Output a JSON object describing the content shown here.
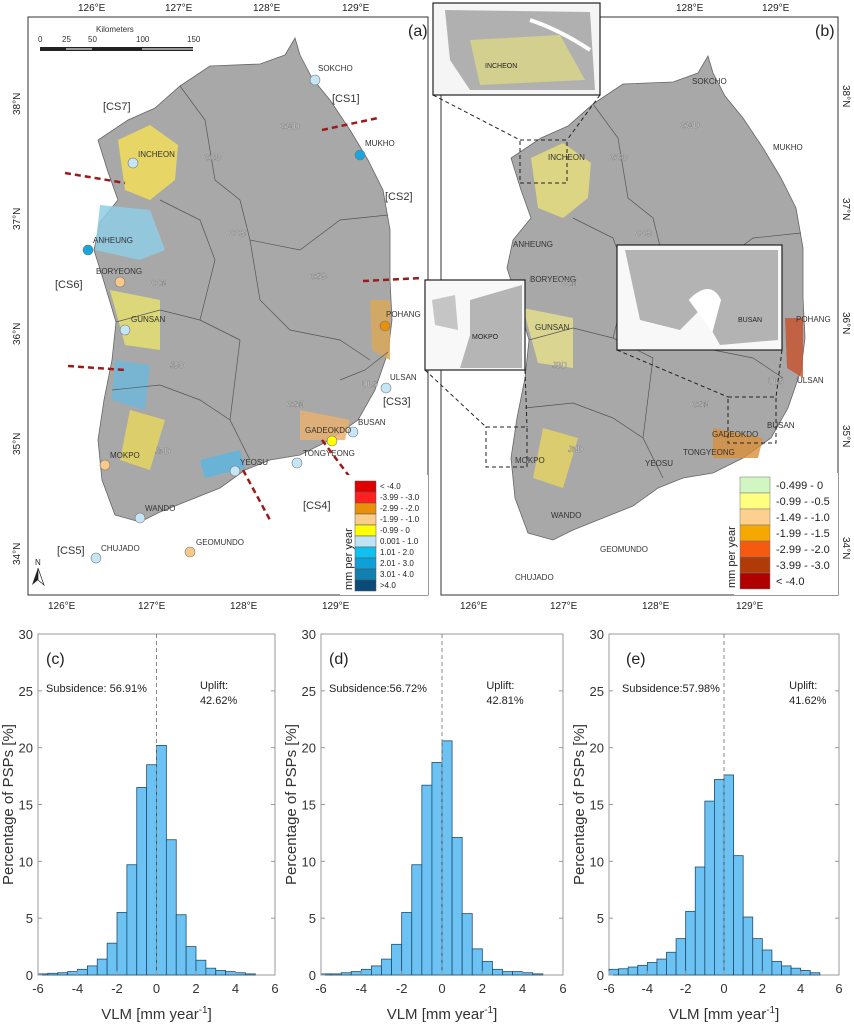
{
  "map_a": {
    "panel_label": "(a)",
    "scale_title": "Kilometers",
    "scale_ticks": [
      "0",
      "25",
      "50",
      "100",
      "150"
    ],
    "lon_ticks_top": [
      "126°E",
      "127°E",
      "128°E",
      "129°E"
    ],
    "lon_ticks_bottom": [
      "126°E",
      "127°E",
      "128°E",
      "129°E"
    ],
    "lat_ticks": [
      "38°N",
      "37°N",
      "36°N",
      "35°N",
      "34°N"
    ],
    "north": "N",
    "provinces": [
      "GWD",
      "GGD",
      "CCB",
      "GSB",
      "CCN",
      "JBD",
      "GSN",
      "JND",
      "ULS"
    ],
    "stations": [
      "SOKCHO",
      "MUKHO",
      "INCHEON",
      "ANHEUNG",
      "BORYEONG",
      "GUNSAN",
      "POHANG",
      "ULSAN",
      "BUSAN",
      "GADEOKDO",
      "TONGYEONG",
      "YEOSU",
      "MOKPO",
      "WANDO",
      "CHUJADO",
      "GEOMUNDO"
    ],
    "station_colors": [
      "#c5e6f7",
      "#1aa6dc",
      "#c5e6f7",
      "#1aa6dc",
      "#f9c98a",
      "#c5e6f7",
      "#e8900a",
      "#c5e6f7",
      "#c5e6f7",
      "#ffff00",
      "#c5e6f7",
      "#c5e6f7",
      "#f9c98a",
      "#c5e6f7",
      "#c5e6f7",
      "#f9c98a"
    ],
    "sections": [
      "[CS1]",
      "[CS2]",
      "[CS3]",
      "[CS4]",
      "[CS5]",
      "[CS6]",
      "[CS7]"
    ],
    "legend_title": "mm per year",
    "legend": [
      {
        "label": "< -4.0",
        "color": "#e00000"
      },
      {
        "label": "-3.99 - -3.0",
        "color": "#ff2020"
      },
      {
        "label": "-2.99 - -2.0",
        "color": "#e8900a"
      },
      {
        "label": "-1.99 - -1.0",
        "color": "#f9cd8a"
      },
      {
        "label": "-0.99 - 0",
        "color": "#ffff00"
      },
      {
        "label": "0.001 - 1.0",
        "color": "#c0e4f5"
      },
      {
        "label": "1.01 - 2.0",
        "color": "#10c0f0"
      },
      {
        "label": "2.01 - 3.0",
        "color": "#10a0d8"
      },
      {
        "label": "3.01 - 4.0",
        "color": "#1080b0"
      },
      {
        "label": ">4.0",
        "color": "#0a4a78"
      }
    ]
  },
  "map_b": {
    "panel_label": "(b)",
    "lon_ticks_top": [
      "128°E",
      "129°E"
    ],
    "lon_ticks_bottom": [
      "126°E",
      "127°E",
      "128°E",
      "129°E"
    ],
    "lat_ticks": [
      "38°N",
      "37°N",
      "36°N",
      "35°N",
      "34°N"
    ],
    "provinces": [
      "GWD",
      "GGD",
      "CCB",
      "CCN",
      "JBD",
      "GSN",
      "JND",
      "ULS"
    ],
    "stations": [
      "SOKCHO",
      "MUKHO",
      "INCHEON",
      "ANHEUNG",
      "BORYEONG",
      "GUNSAN",
      "POHANG",
      "ULSAN",
      "BUSAN",
      "GADEOKDO",
      "TONGYEONG",
      "YEOSU",
      "MOKPO",
      "WANDO",
      "CHUJADO",
      "GEOMUNDO"
    ],
    "insets": [
      "INCHEON",
      "MOKPO",
      "BUSAN"
    ],
    "legend_title": "mm per year",
    "legend": [
      {
        "label": "-0.499 - 0",
        "color": "#d2f5c4"
      },
      {
        "label": "-0.99 - -0.5",
        "color": "#ffff80"
      },
      {
        "label": "-1.49 - -1.0",
        "color": "#fdd090"
      },
      {
        "label": "-1.99 - -1.5",
        "color": "#f5a800"
      },
      {
        "label": "-2.99 - -2.0",
        "color": "#f55a10"
      },
      {
        "label": "-3.99 - -3.0",
        "color": "#b03a08"
      },
      {
        "label": "< -4.0",
        "color": "#b00000"
      }
    ]
  },
  "chart_data": [
    {
      "type": "bar",
      "panel": "(c)",
      "title": "",
      "xlabel": "VLM [mm year-1]",
      "ylabel": "Percentage of PSPs [%]",
      "xlim": [
        -6,
        6
      ],
      "ylim": [
        0,
        30
      ],
      "bin_width": 0.5,
      "bin_start": -6,
      "xticks": [
        "-6",
        "-4",
        "-2",
        "0",
        "2",
        "4",
        "6"
      ],
      "yticks": [
        "0",
        "5",
        "10",
        "15",
        "20",
        "25",
        "30"
      ],
      "values": [
        0.1,
        0.15,
        0.2,
        0.3,
        0.5,
        0.8,
        1.4,
        2.8,
        5.5,
        9.7,
        16.5,
        18.5,
        20.2,
        11.9,
        5.3,
        2.5,
        1.3,
        0.6,
        0.4,
        0.3,
        0.2,
        0.1
      ],
      "subsidence": "Subsidence: 56.91%",
      "uplift_label": "Uplift:",
      "uplift": "42.62%",
      "color": "#6cc2f2"
    },
    {
      "type": "bar",
      "panel": "(d)",
      "title": "",
      "xlabel": "VLM [mm year-1]",
      "ylabel": "Percentage of PSPs [%]",
      "xlim": [
        -6,
        6
      ],
      "ylim": [
        0,
        30
      ],
      "bin_width": 0.5,
      "bin_start": -6,
      "xticks": [
        "-6",
        "-4",
        "-2",
        "0",
        "2",
        "4",
        "6"
      ],
      "yticks": [
        "0",
        "5",
        "10",
        "15",
        "20",
        "25",
        "30"
      ],
      "values": [
        0.1,
        0.1,
        0.2,
        0.3,
        0.5,
        0.8,
        1.4,
        2.7,
        5.5,
        9.7,
        16.7,
        18.7,
        20.6,
        12.1,
        5.4,
        2.3,
        1.2,
        0.5,
        0.3,
        0.3,
        0.2,
        0.1
      ],
      "subsidence": "Subsidence:56.72%",
      "uplift_label": "Uplift:",
      "uplift": "42.81%",
      "color": "#6cc2f2"
    },
    {
      "type": "bar",
      "panel": "(e)",
      "title": "",
      "xlabel": "VLM [mm year-1]",
      "ylabel": "Percentage of PSPs [%]",
      "xlim": [
        -6,
        6
      ],
      "ylim": [
        0,
        30
      ],
      "bin_width": 0.5,
      "bin_start": -6,
      "xticks": [
        "-6",
        "-4",
        "-2",
        "0",
        "2",
        "4",
        "6"
      ],
      "yticks": [
        "0",
        "5",
        "10",
        "15",
        "20",
        "25",
        "30"
      ],
      "values": [
        0.5,
        0.55,
        0.7,
        0.85,
        1.1,
        1.4,
        2.0,
        3.2,
        5.6,
        9.5,
        15.3,
        17.2,
        17.6,
        10.5,
        5.1,
        3.2,
        2.2,
        1.2,
        0.8,
        0.6,
        0.4,
        0.2
      ],
      "subsidence": "Subsidence:57.98%",
      "uplift_label": "Uplift:",
      "uplift": "41.62%",
      "color": "#6cc2f2"
    }
  ],
  "xlabel_main": "VLM [mm year",
  "xlabel_sup": "-1",
  "xlabel_end": "]"
}
